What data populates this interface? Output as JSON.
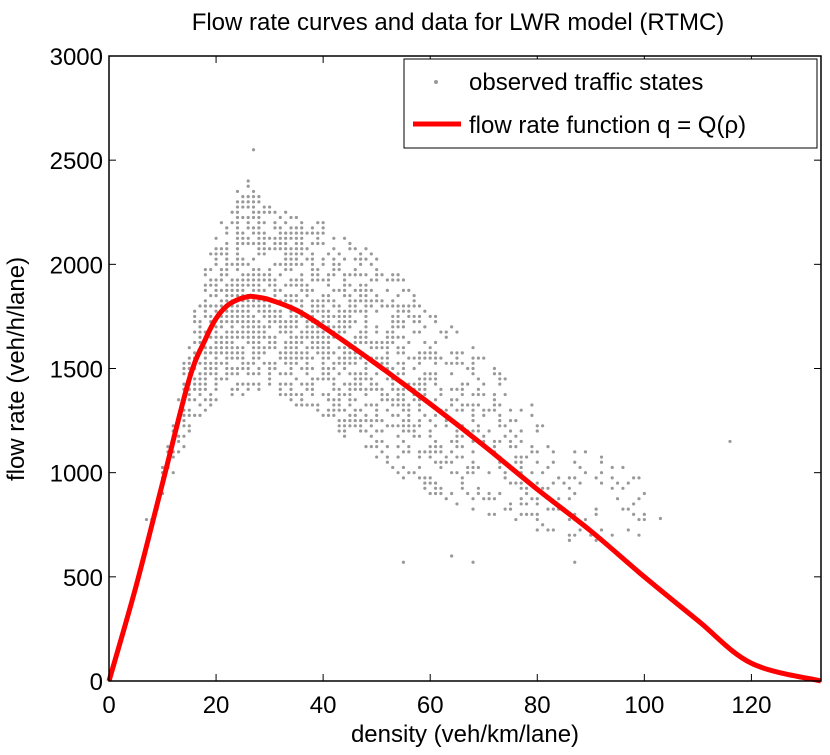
{
  "chart_data": {
    "type": "scatter",
    "title": "Flow rate curves and data for LWR model (RTMC)",
    "xlabel": "density (veh/km/lane)",
    "ylabel": "flow rate (veh/h/lane)",
    "xlim": [
      0,
      133
    ],
    "ylim": [
      0,
      3000
    ],
    "xticks": [
      0,
      20,
      40,
      60,
      80,
      100,
      120
    ],
    "yticks": [
      0,
      500,
      1000,
      1500,
      2000,
      2500,
      3000
    ],
    "grid": false,
    "legend_position": "top-right",
    "legend": [
      "observed traffic states",
      "flow rate function q = Q(ρ)"
    ],
    "colors": {
      "scatter": "#999999",
      "curve": "#ff0000"
    },
    "scatter_envelope": {
      "description": "Dense cloud of observed (density, flow) states, flow values quantized in ~25 veh/h steps",
      "density_range": [
        7,
        117
      ],
      "upper_edge": [
        [
          8,
          800
        ],
        [
          12,
          1250
        ],
        [
          16,
          1800
        ],
        [
          20,
          2150
        ],
        [
          24,
          2350
        ],
        [
          26,
          2400
        ],
        [
          30,
          2280
        ],
        [
          40,
          2200
        ],
        [
          50,
          2050
        ],
        [
          60,
          1800
        ],
        [
          70,
          1550
        ],
        [
          80,
          1300
        ],
        [
          90,
          1100
        ],
        [
          100,
          1000
        ]
      ],
      "lower_edge": [
        [
          8,
          750
        ],
        [
          12,
          1000
        ],
        [
          16,
          1250
        ],
        [
          20,
          1350
        ],
        [
          30,
          1400
        ],
        [
          40,
          1250
        ],
        [
          50,
          1050
        ],
        [
          60,
          900
        ],
        [
          70,
          800
        ],
        [
          80,
          700
        ],
        [
          90,
          650
        ],
        [
          100,
          700
        ]
      ],
      "outliers": [
        [
          27,
          2550
        ],
        [
          116,
          1150
        ],
        [
          103,
          780
        ],
        [
          55,
          570
        ],
        [
          68,
          570
        ],
        [
          64,
          600
        ],
        [
          87,
          570
        ]
      ]
    },
    "curve": {
      "name": "flow rate function q = Q(ρ)",
      "x": [
        0,
        5,
        10,
        15,
        18,
        20,
        22,
        24,
        26,
        27,
        30,
        35,
        40,
        50,
        60,
        70,
        80,
        90,
        100,
        110,
        120,
        133
      ],
      "y": [
        0,
        450,
        950,
        1450,
        1640,
        1740,
        1800,
        1830,
        1845,
        1845,
        1830,
        1780,
        1700,
        1520,
        1330,
        1130,
        920,
        720,
        500,
        290,
        85,
        0
      ]
    }
  }
}
